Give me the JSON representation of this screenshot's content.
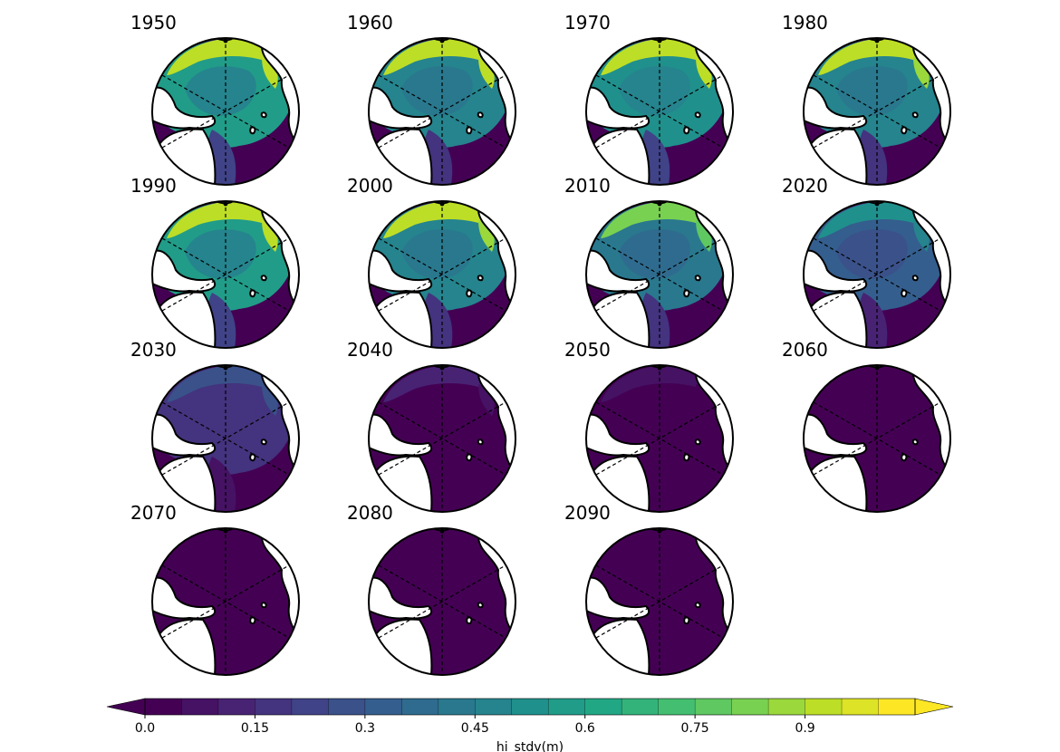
{
  "figure": {
    "panels": [
      {
        "label": "1950",
        "mean_stdv_m": 0.62,
        "edge_stdv_m": 0.95
      },
      {
        "label": "1960",
        "mean_stdv_m": 0.55,
        "edge_stdv_m": 0.95
      },
      {
        "label": "1970",
        "mean_stdv_m": 0.58,
        "edge_stdv_m": 0.95
      },
      {
        "label": "1980",
        "mean_stdv_m": 0.55,
        "edge_stdv_m": 0.92
      },
      {
        "label": "1990",
        "mean_stdv_m": 0.62,
        "edge_stdv_m": 0.95
      },
      {
        "label": "2000",
        "mean_stdv_m": 0.55,
        "edge_stdv_m": 0.9
      },
      {
        "label": "2010",
        "mean_stdv_m": 0.45,
        "edge_stdv_m": 0.8
      },
      {
        "label": "2020",
        "mean_stdv_m": 0.35,
        "edge_stdv_m": 0.5
      },
      {
        "label": "2030",
        "mean_stdv_m": 0.2,
        "edge_stdv_m": 0.3
      },
      {
        "label": "2040",
        "mean_stdv_m": 0.05,
        "edge_stdv_m": 0.1
      },
      {
        "label": "2050",
        "mean_stdv_m": 0.02,
        "edge_stdv_m": 0.05
      },
      {
        "label": "2060",
        "mean_stdv_m": 0.01,
        "edge_stdv_m": 0.03
      },
      {
        "label": "2070",
        "mean_stdv_m": 0.01,
        "edge_stdv_m": 0.02
      },
      {
        "label": "2080",
        "mean_stdv_m": 0.01,
        "edge_stdv_m": 0.02
      },
      {
        "label": "2090",
        "mean_stdv_m": 0.01,
        "edge_stdv_m": 0.02
      }
    ],
    "colorbar": {
      "label": "hi_stdv(m)",
      "vmin": 0.0,
      "vmax": 1.05,
      "step": 0.05,
      "ticks": [
        "0.0",
        "0.15",
        "0.3",
        "0.45",
        "0.6",
        "0.75",
        "0.9"
      ],
      "extend": "both",
      "colormap": "viridis"
    },
    "colors": {
      "land": "#ffffff",
      "coastline": "#000000",
      "low": "#440154",
      "high": "#fde725"
    }
  }
}
